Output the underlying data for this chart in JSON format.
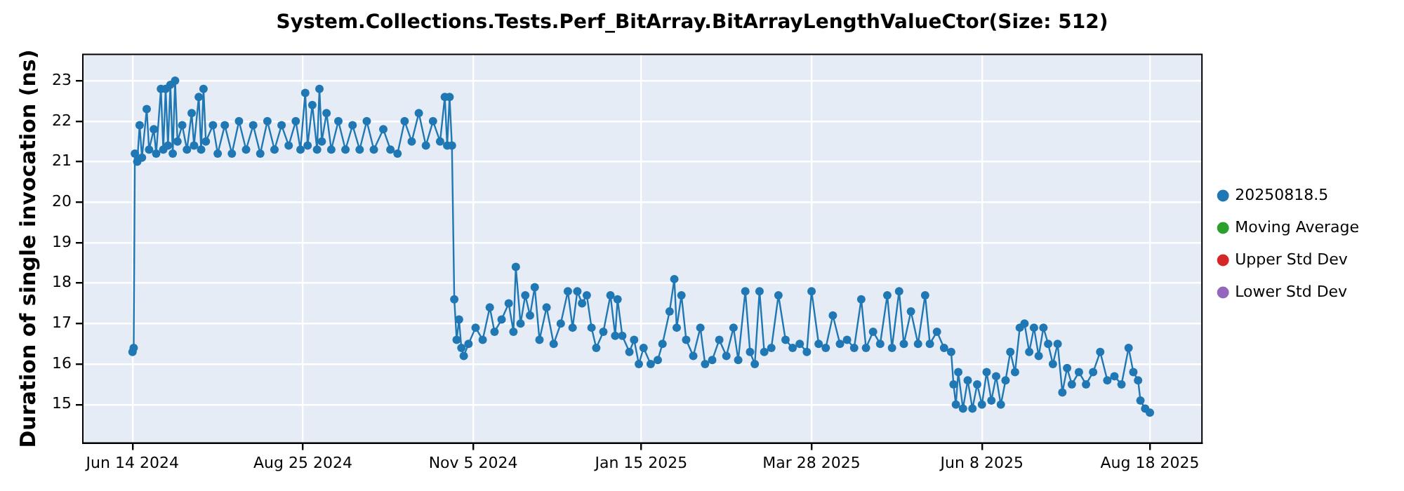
{
  "chart_data": {
    "type": "line",
    "title": "System.Collections.Tests.Perf_BitArray.BitArrayLengthValueCtor(Size: 512)",
    "ylabel": "Duration of single invocation (ns)",
    "xlim": [
      "2024-05-24",
      "2025-09-09"
    ],
    "xticks": [
      {
        "value": "2024-06-14",
        "label": "Jun 14 2024"
      },
      {
        "value": "2024-08-25",
        "label": "Aug 25 2024"
      },
      {
        "value": "2024-11-05",
        "label": "Nov 5 2024"
      },
      {
        "value": "2025-01-15",
        "label": "Jan 15 2025"
      },
      {
        "value": "2025-03-28",
        "label": "Mar 28 2025"
      },
      {
        "value": "2025-06-08",
        "label": "Jun 8 2025"
      },
      {
        "value": "2025-08-18",
        "label": "Aug 18 2025"
      }
    ],
    "ylim": [
      14.05,
      23.65
    ],
    "yticks": [
      15,
      16,
      17,
      18,
      19,
      20,
      21,
      22,
      23
    ],
    "grid": true,
    "legend": "right",
    "marker": "circle",
    "line_style": "solid",
    "series": [
      {
        "name": "20250818.5",
        "color": "#1f77b4",
        "x": [
          "2024-06-14",
          "2024-06-14T12:00",
          "2024-06-15",
          "2024-06-16",
          "2024-06-17",
          "2024-06-18",
          "2024-06-20",
          "2024-06-21",
          "2024-06-23",
          "2024-06-24",
          "2024-06-26",
          "2024-06-27",
          "2024-06-28",
          "2024-06-29",
          "2024-06-30",
          "2024-07-01",
          "2024-07-02",
          "2024-07-03",
          "2024-07-05",
          "2024-07-07",
          "2024-07-09",
          "2024-07-10",
          "2024-07-12",
          "2024-07-13",
          "2024-07-14",
          "2024-07-15",
          "2024-07-18",
          "2024-07-20",
          "2024-07-23",
          "2024-07-26",
          "2024-07-29",
          "2024-08-01",
          "2024-08-04",
          "2024-08-07",
          "2024-08-10",
          "2024-08-13",
          "2024-08-16",
          "2024-08-19",
          "2024-08-22",
          "2024-08-24",
          "2024-08-26",
          "2024-08-27",
          "2024-08-29",
          "2024-08-31",
          "2024-09-01",
          "2024-09-02",
          "2024-09-04",
          "2024-09-06",
          "2024-09-09",
          "2024-09-12",
          "2024-09-15",
          "2024-09-18",
          "2024-09-21",
          "2024-09-24",
          "2024-09-28",
          "2024-10-01",
          "2024-10-04",
          "2024-10-07",
          "2024-10-10",
          "2024-10-13",
          "2024-10-16",
          "2024-10-19",
          "2024-10-22",
          "2024-10-24",
          "2024-10-25",
          "2024-10-26",
          "2024-10-27",
          "2024-10-28",
          "2024-10-29",
          "2024-10-30",
          "2024-10-31",
          "2024-11-01",
          "2024-11-03",
          "2024-11-06",
          "2024-11-09",
          "2024-11-12",
          "2024-11-14",
          "2024-11-17",
          "2024-11-20",
          "2024-11-22",
          "2024-11-23",
          "2024-11-25",
          "2024-11-27",
          "2024-11-29",
          "2024-12-01",
          "2024-12-03",
          "2024-12-06",
          "2024-12-09",
          "2024-12-12",
          "2024-12-15",
          "2024-12-17",
          "2024-12-19",
          "2024-12-21",
          "2024-12-23",
          "2024-12-25",
          "2024-12-27",
          "2024-12-30",
          "2025-01-02",
          "2025-01-04",
          "2025-01-05",
          "2025-01-07",
          "2025-01-10",
          "2025-01-12",
          "2025-01-14",
          "2025-01-16",
          "2025-01-19",
          "2025-01-22",
          "2025-01-24",
          "2025-01-27",
          "2025-01-29",
          "2025-01-30",
          "2025-02-01",
          "2025-02-03",
          "2025-02-06",
          "2025-02-09",
          "2025-02-11",
          "2025-02-14",
          "2025-02-17",
          "2025-02-20",
          "2025-02-23",
          "2025-02-25",
          "2025-02-28",
          "2025-03-02",
          "2025-03-04",
          "2025-03-06",
          "2025-03-08",
          "2025-03-11",
          "2025-03-14",
          "2025-03-17",
          "2025-03-20",
          "2025-03-23",
          "2025-03-26",
          "2025-03-28",
          "2025-03-31",
          "2025-04-03",
          "2025-04-06",
          "2025-04-09",
          "2025-04-12",
          "2025-04-15",
          "2025-04-18",
          "2025-04-20",
          "2025-04-23",
          "2025-04-26",
          "2025-04-29",
          "2025-05-01",
          "2025-05-04",
          "2025-05-06",
          "2025-05-09",
          "2025-05-12",
          "2025-05-15",
          "2025-05-17",
          "2025-05-20",
          "2025-05-23",
          "2025-05-26",
          "2025-05-27",
          "2025-05-28",
          "2025-05-29",
          "2025-05-31",
          "2025-06-02",
          "2025-06-04",
          "2025-06-06",
          "2025-06-08",
          "2025-06-10",
          "2025-06-12",
          "2025-06-14",
          "2025-06-16",
          "2025-06-18",
          "2025-06-20",
          "2025-06-22",
          "2025-06-24",
          "2025-06-26",
          "2025-06-28",
          "2025-06-30",
          "2025-07-02",
          "2025-07-04",
          "2025-07-06",
          "2025-07-08",
          "2025-07-10",
          "2025-07-12",
          "2025-07-14",
          "2025-07-16",
          "2025-07-19",
          "2025-07-22",
          "2025-07-25",
          "2025-07-28",
          "2025-07-31",
          "2025-08-03",
          "2025-08-06",
          "2025-08-09",
          "2025-08-11",
          "2025-08-13",
          "2025-08-14",
          "2025-08-16",
          "2025-08-18"
        ],
        "values": [
          16.3,
          16.4,
          21.2,
          21.0,
          21.9,
          21.1,
          22.3,
          21.3,
          21.8,
          21.2,
          22.8,
          21.3,
          22.8,
          21.4,
          22.9,
          21.2,
          23.0,
          21.5,
          21.9,
          21.3,
          22.2,
          21.4,
          22.6,
          21.3,
          22.8,
          21.5,
          21.9,
          21.2,
          21.9,
          21.2,
          22.0,
          21.3,
          21.9,
          21.2,
          22.0,
          21.3,
          21.9,
          21.4,
          22.0,
          21.3,
          22.7,
          21.4,
          22.4,
          21.3,
          22.8,
          21.5,
          22.2,
          21.3,
          22.0,
          21.3,
          21.9,
          21.3,
          22.0,
          21.3,
          21.8,
          21.3,
          21.2,
          22.0,
          21.5,
          22.2,
          21.4,
          22.0,
          21.5,
          22.6,
          21.4,
          22.6,
          21.4,
          17.6,
          16.6,
          17.1,
          16.4,
          16.2,
          16.5,
          16.9,
          16.6,
          17.4,
          16.8,
          17.1,
          17.5,
          16.8,
          18.4,
          17.0,
          17.7,
          17.2,
          17.9,
          16.6,
          17.4,
          16.5,
          17.0,
          17.8,
          16.9,
          17.8,
          17.5,
          17.7,
          16.9,
          16.4,
          16.8,
          17.7,
          16.7,
          17.6,
          16.7,
          16.3,
          16.6,
          16.0,
          16.4,
          16.0,
          16.1,
          16.5,
          17.3,
          18.1,
          16.9,
          17.7,
          16.6,
          16.2,
          16.9,
          16.0,
          16.1,
          16.6,
          16.2,
          16.9,
          16.1,
          17.8,
          16.3,
          16.0,
          17.8,
          16.3,
          16.4,
          17.7,
          16.6,
          16.4,
          16.5,
          16.3,
          17.8,
          16.5,
          16.4,
          17.2,
          16.5,
          16.6,
          16.4,
          17.6,
          16.4,
          16.8,
          16.5,
          17.7,
          16.4,
          17.8,
          16.5,
          17.3,
          16.5,
          17.7,
          16.5,
          16.8,
          16.4,
          16.3,
          15.5,
          15.0,
          15.8,
          14.9,
          15.6,
          14.9,
          15.5,
          15.0,
          15.8,
          15.1,
          15.7,
          15.0,
          15.6,
          16.3,
          15.8,
          16.9,
          17.0,
          16.3,
          16.9,
          16.2,
          16.9,
          16.5,
          16.0,
          16.5,
          15.3,
          15.9,
          15.5,
          15.8,
          15.5,
          15.8,
          16.3,
          15.6,
          15.7,
          15.5,
          16.4,
          15.8,
          15.6,
          15.1,
          14.9,
          14.8
        ]
      },
      {
        "name": "Moving Average",
        "color": "#2ca02c"
      },
      {
        "name": "Upper Std Dev",
        "color": "#d62728"
      },
      {
        "name": "Lower Std Dev",
        "color": "#9467bd"
      }
    ]
  }
}
